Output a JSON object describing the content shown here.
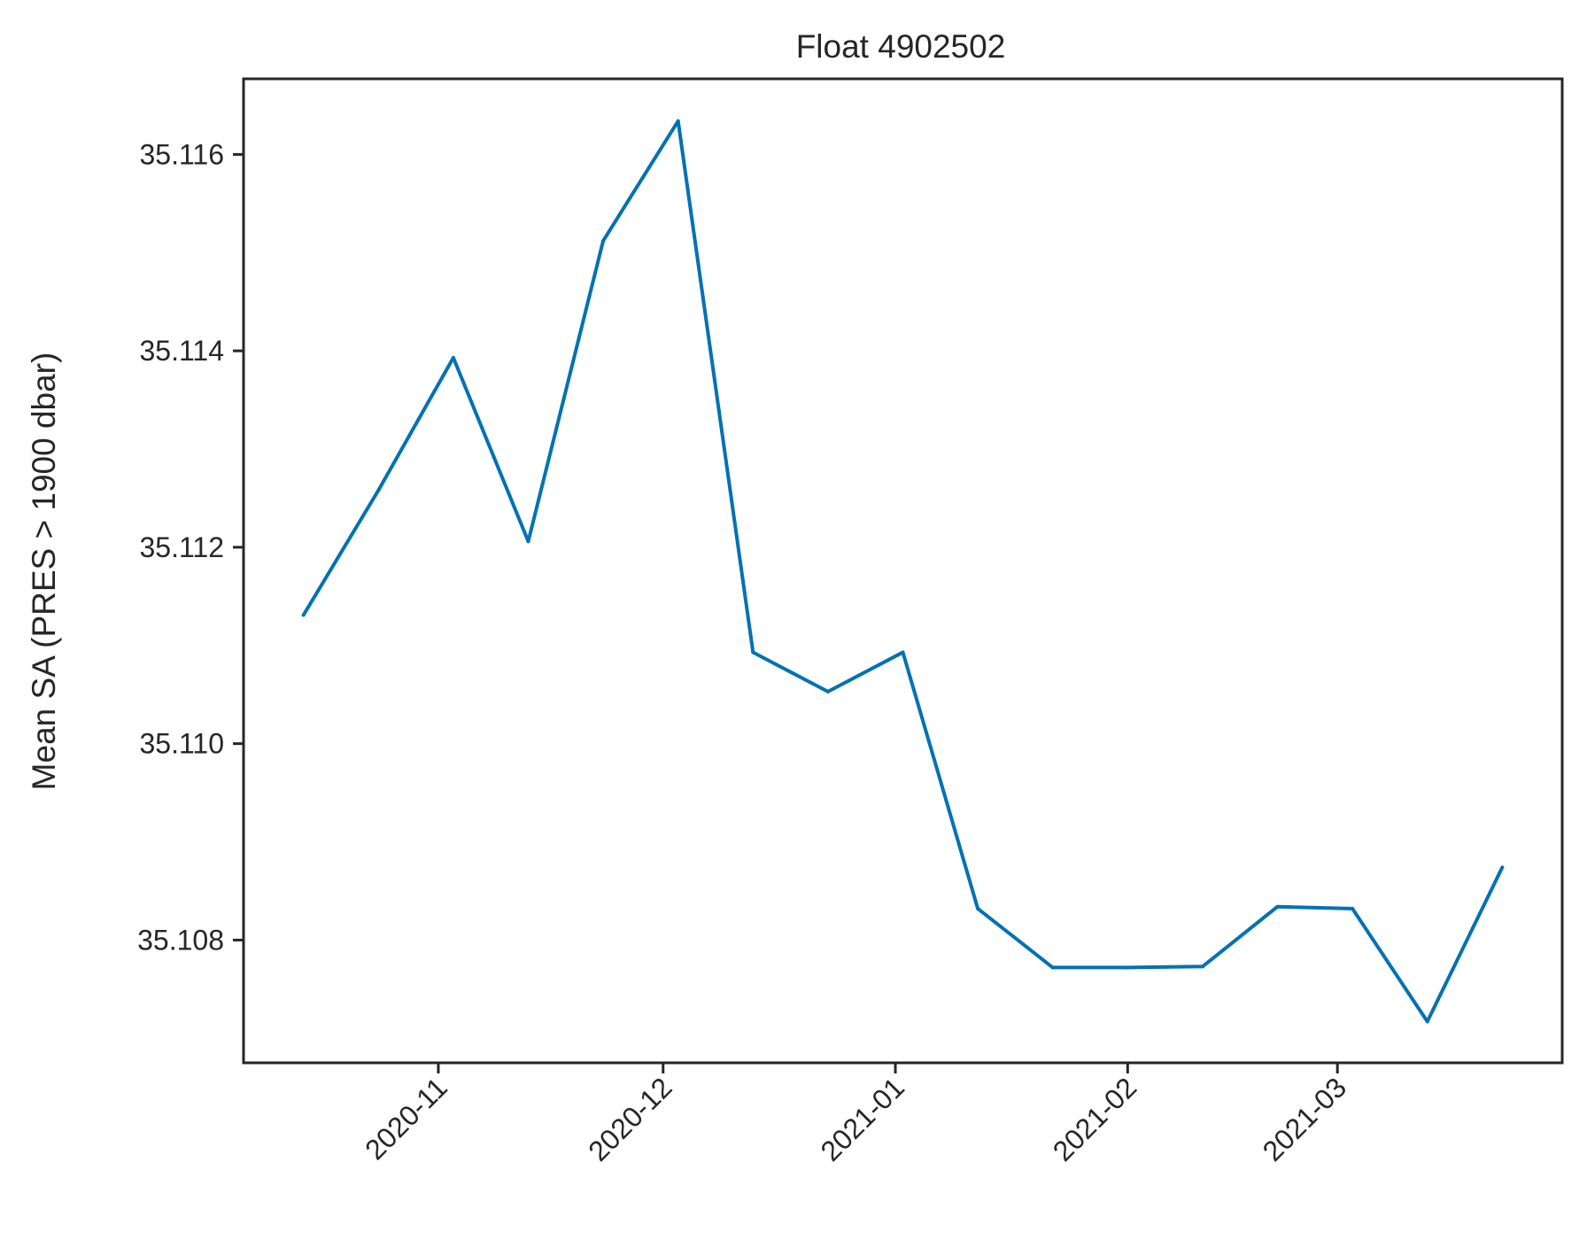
{
  "chart_data": {
    "type": "line",
    "title": "Float 4902502",
    "xlabel": "",
    "ylabel": "Mean SA (PRES > 1900 dbar)",
    "x_axis_type": "date",
    "x_tick_labels": [
      "2020-11",
      "2020-12",
      "2021-01",
      "2021-02",
      "2021-03"
    ],
    "x_tick_dates": [
      "2020-11-01",
      "2020-12-01",
      "2021-01-01",
      "2021-02-01",
      "2021-03-01"
    ],
    "x_tick_rotation_deg": 45,
    "y_ticks": [
      35.108,
      35.11,
      35.112,
      35.114,
      35.116
    ],
    "y_tick_labels": [
      "35.108",
      "35.110",
      "35.112",
      "35.114",
      "35.116"
    ],
    "ylim": [
      35.10675,
      35.11677
    ],
    "xlim": [
      "2020-10-06",
      "2021-03-31"
    ],
    "grid": false,
    "series": [
      {
        "color": "#0072b2",
        "x": [
          "2020-10-14",
          "2020-10-24",
          "2020-11-03",
          "2020-11-13",
          "2020-11-23",
          "2020-12-03",
          "2020-12-13",
          "2020-12-23",
          "2021-01-02",
          "2021-01-12",
          "2021-01-22",
          "2021-02-01",
          "2021-02-11",
          "2021-02-21",
          "2021-03-03",
          "2021-03-13",
          "2021-03-23"
        ],
        "values": [
          35.11131,
          35.11258,
          35.11393,
          35.11206,
          35.11512,
          35.11634,
          35.11093,
          35.11053,
          35.11093,
          35.10832,
          35.10772,
          35.10772,
          35.10773,
          35.10834,
          35.10832,
          35.10717,
          35.10874
        ]
      }
    ]
  }
}
